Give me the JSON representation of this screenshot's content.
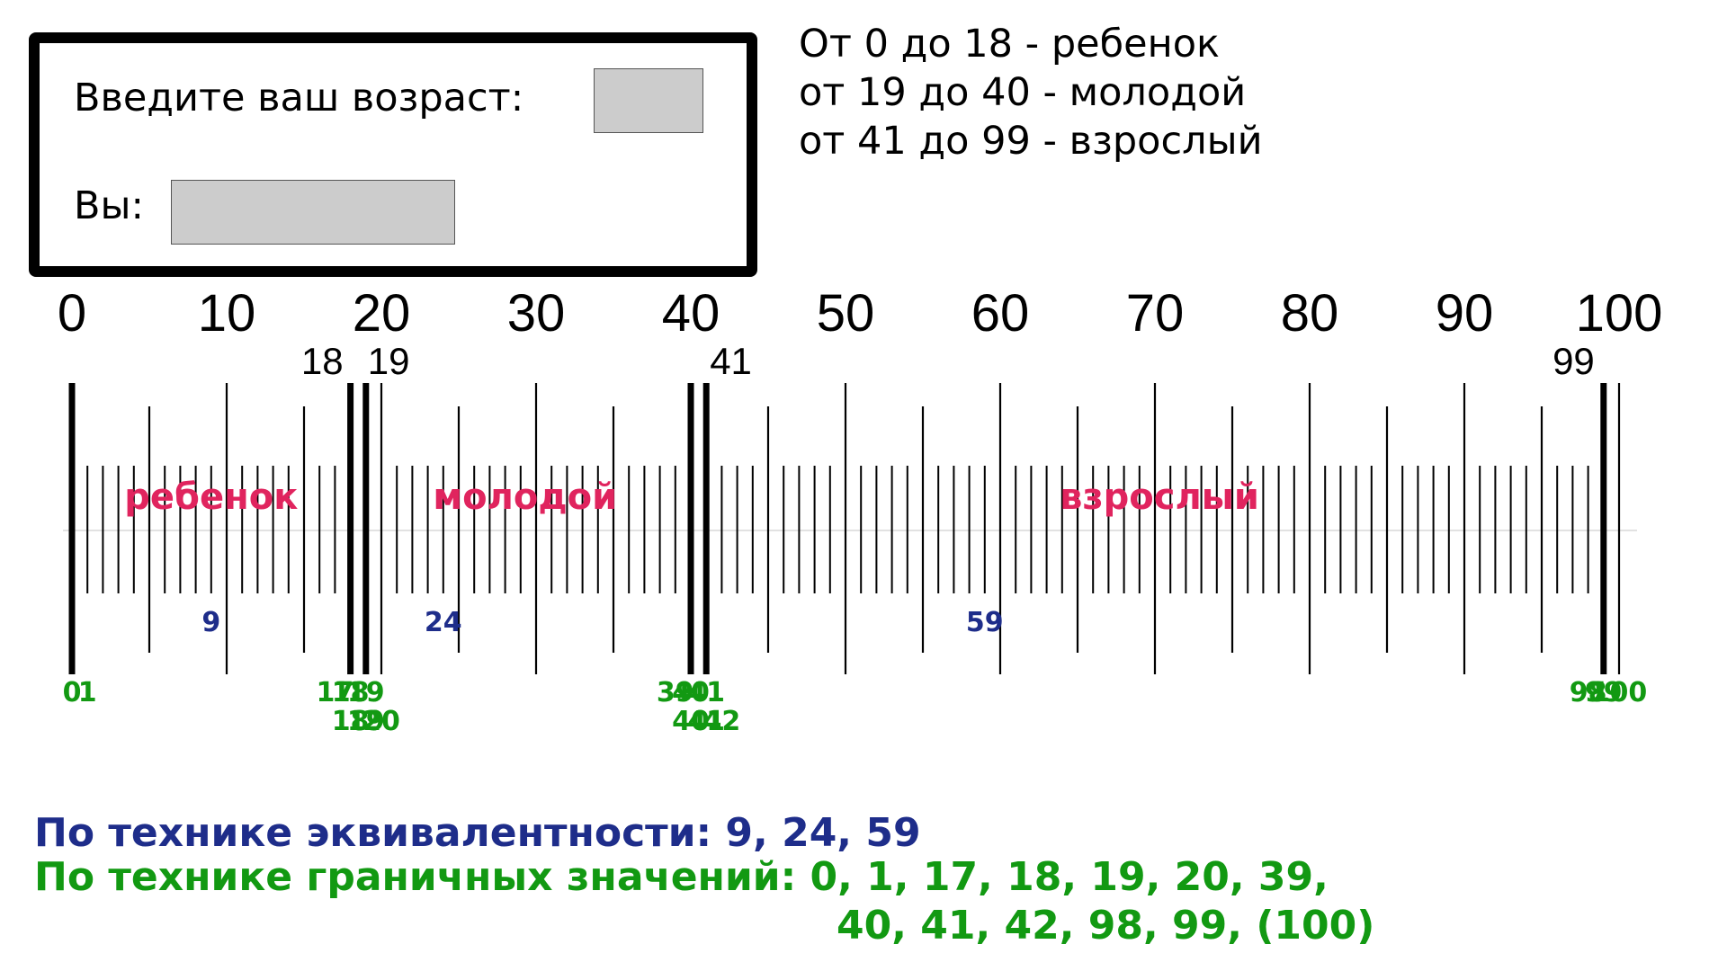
{
  "form": {
    "age_label": "Введите ваш возраст:",
    "age_value": "",
    "result_label": "Вы:",
    "result_value": ""
  },
  "rules": [
    "От 0 до 18 - ребенок",
    "от 19 до 40 - молодой",
    "от 41 до 99 - взрослый"
  ],
  "ruler": {
    "min": 0,
    "max": 100,
    "major_labels": [
      "0",
      "10",
      "20",
      "30",
      "40",
      "50",
      "60",
      "70",
      "80",
      "90",
      "100"
    ],
    "boundary_labels": [
      {
        "value": 18,
        "text": "18"
      },
      {
        "value": 19,
        "text": "19"
      },
      {
        "value": 41,
        "text": "41"
      },
      {
        "value": 99,
        "text": "99"
      }
    ],
    "bold_lines": [
      0,
      18,
      19,
      40,
      41,
      99
    ],
    "class_labels": [
      {
        "text": "ребенок",
        "center": 9
      },
      {
        "text": "молодой",
        "center": 29
      },
      {
        "text": "взрослый",
        "center": 70
      }
    ],
    "equivalence_values": [
      "9",
      "24",
      "59"
    ],
    "boundary_values_row1": [
      "0",
      "1",
      "17",
      "18",
      "19",
      "39",
      "40",
      "41",
      "98",
      "99",
      "100"
    ],
    "boundary_values_row2": [
      "18",
      "19",
      "20",
      "40",
      "41",
      "42"
    ]
  },
  "summary": {
    "equivalence": "По технике эквивалентности: 9, 24, 59",
    "boundary_line1": "По технике граничных значений: 0, 1, 17, 18, 19, 20, 39,",
    "boundary_line2": "40, 41, 42, 98, 99, (100)"
  },
  "colors": {
    "equivalence": "#1e2d8a",
    "boundary": "#129912",
    "class_label": "#e0245e",
    "input_bg": "#cccccc"
  }
}
